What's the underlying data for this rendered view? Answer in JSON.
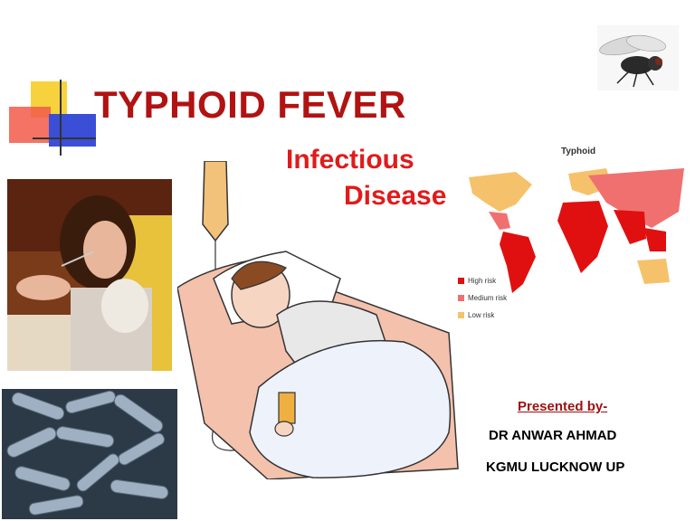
{
  "slide": {
    "title": "TYPHOID FEVER",
    "subtitle_line1": "Infectious",
    "subtitle_line2": "Disease",
    "presented_by": "Presented by-",
    "presenter_name": "DR ANWAR AHMAD",
    "presenter_org": "KGMU LUCKNOW UP"
  },
  "map": {
    "title": "Typhoid",
    "legend": [
      {
        "label": "High risk",
        "color": "#e01010"
      },
      {
        "label": "Medium risk",
        "color": "#f07070"
      },
      {
        "label": "Low risk",
        "color": "#f5c26b"
      }
    ]
  },
  "colors": {
    "title": "#b11212",
    "subtitle": "#e01b1b",
    "accent_yellow": "#f7d23c",
    "accent_red": "#f25a4a",
    "accent_blue": "#3a4fd6"
  },
  "icons": [
    "fly-icon"
  ]
}
